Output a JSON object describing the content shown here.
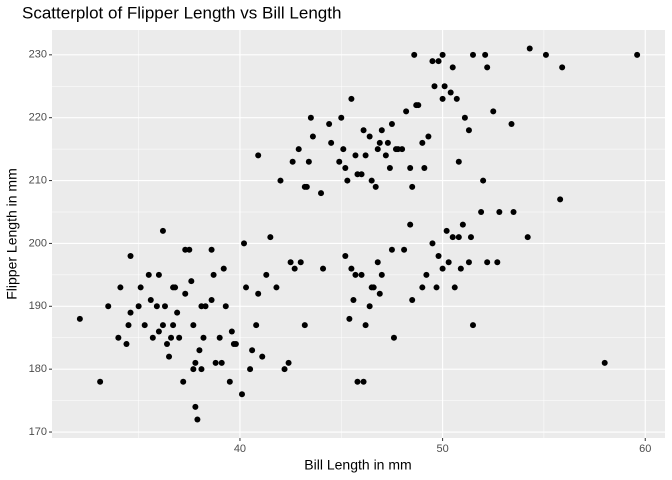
{
  "chart_data": {
    "type": "scatter",
    "title": "Scatterplot of Flipper Length vs Bill Length",
    "x_label": "Bill Length in mm",
    "y_label": "Flipper Length in mm",
    "xlim": [
      30.725,
      60.975
    ],
    "ylim": [
      169.05,
      233.95
    ],
    "xticks": [
      40,
      50,
      60
    ],
    "yticks": [
      170,
      180,
      190,
      200,
      210,
      220,
      230
    ],
    "x_minor_grid": [
      35,
      45,
      55
    ],
    "y_minor_grid": [
      175,
      185,
      195,
      205,
      215,
      225
    ],
    "grid": true,
    "color": "#000000",
    "x": [
      32.1,
      33.1,
      33.5,
      34,
      34.1,
      34.4,
      34.5,
      34.6,
      34.6,
      35,
      35.1,
      35.3,
      35.5,
      35.6,
      35.7,
      35.9,
      36,
      36,
      36.2,
      36.2,
      36.3,
      36.4,
      36.5,
      36.6,
      36.7,
      36.7,
      36.8,
      36.9,
      37,
      37.2,
      37.3,
      37.3,
      37.5,
      37.6,
      37.7,
      37.7,
      37.8,
      37.8,
      37.9,
      38,
      38.1,
      38.1,
      38.2,
      38.3,
      38.6,
      38.6,
      38.7,
      38.8,
      39,
      39.1,
      39.2,
      39.3,
      39.5,
      39.6,
      39.7,
      39.8,
      40.1,
      40.2,
      40.3,
      40.5,
      40.6,
      40.8,
      40.9,
      41.1,
      41.3,
      41.5,
      41.8,
      42.2,
      42.4,
      42.5,
      42.7,
      43,
      43.2,
      44.1,
      45.8,
      45.2,
      45.4,
      45.5,
      45.6,
      45.7,
      46,
      46.1,
      46.4,
      46.5,
      46.6,
      46.8,
      47,
      47.5,
      47.6,
      48.1,
      48.5,
      49,
      49.2,
      49.5,
      49.7,
      50,
      50.2,
      50.3,
      50.5,
      50.6,
      50.8,
      51,
      51.3,
      51.4,
      51.5,
      51.9,
      52,
      52.2,
      52.7,
      52.8,
      53.5,
      54.2,
      55.8,
      58,
      48.4,
      49.8,
      46.9,
      46.2,
      50.9,
      40.9,
      42,
      42.6,
      42.9,
      43.2,
      43.3,
      43.4,
      43.5,
      43.6,
      44,
      44.4,
      44.5,
      45,
      45.1,
      45.2,
      45.3,
      45.5,
      45.7,
      46,
      46.1,
      46.2,
      46.4,
      46.5,
      46.8,
      46.9,
      47.2,
      47.3,
      47.4,
      47.5,
      47.7,
      48,
      48.2,
      48.4,
      48.5,
      48.7,
      48.8,
      49,
      49.1,
      49.5,
      49.6,
      49.8,
      50,
      50.1,
      50.4,
      50.5,
      50.7,
      50.8,
      51.1,
      51.3,
      51.5,
      52.1,
      52.2,
      52.5,
      53.4,
      54.3,
      55.1,
      55.9,
      59.6,
      48.6,
      50,
      49.3,
      47.8,
      46.7,
      44.9,
      45.8,
      47
    ],
    "values": [
      188,
      178,
      190,
      185,
      193,
      184,
      187,
      189,
      198,
      190,
      193,
      187,
      195,
      191,
      185,
      190,
      186,
      195,
      187,
      202,
      190,
      184,
      182,
      185,
      187,
      193,
      193,
      189,
      185,
      178,
      192,
      199,
      199,
      194,
      180,
      187,
      174,
      181,
      172,
      183,
      180,
      190,
      185,
      190,
      191,
      199,
      195,
      181,
      185,
      181,
      196,
      190,
      178,
      186,
      184,
      184,
      176,
      200,
      193,
      180,
      183,
      187,
      192,
      182,
      195,
      201,
      193,
      180,
      181,
      197,
      196,
      197,
      187,
      196,
      178,
      198,
      188,
      196,
      191,
      195,
      195,
      178,
      190,
      193,
      193,
      197,
      195,
      199,
      185,
      199,
      191,
      193,
      195,
      200,
      193,
      196,
      202,
      197,
      201,
      193,
      201,
      203,
      197,
      201,
      187,
      205,
      210,
      197,
      197,
      205,
      205,
      201,
      207,
      181,
      203,
      198,
      192,
      187,
      196,
      214,
      210,
      213,
      215,
      209,
      209,
      213,
      220,
      217,
      208,
      219,
      216,
      220,
      215,
      212,
      210,
      223,
      214,
      211,
      218,
      214,
      217,
      210,
      215,
      216,
      214,
      216,
      212,
      219,
      215,
      215,
      221,
      212,
      209,
      222,
      222,
      216,
      212,
      229,
      225,
      229,
      223,
      225,
      224,
      228,
      223,
      213,
      220,
      218,
      230,
      230,
      228,
      221,
      219,
      231,
      230,
      228,
      230,
      230,
      230,
      217,
      215,
      209,
      213,
      211,
      218
    ]
  }
}
